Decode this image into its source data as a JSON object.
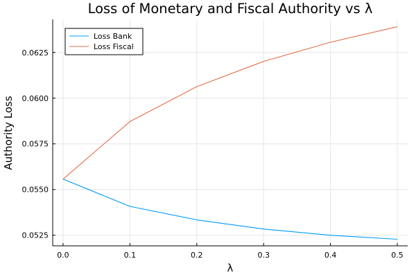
{
  "chart_data": {
    "type": "line",
    "title": "Loss of Monetary and Fiscal Authority vs λ",
    "xlabel": "λ",
    "ylabel": "Authority Loss",
    "x": [
      0.0,
      0.1,
      0.2,
      0.3,
      0.4,
      0.5
    ],
    "x_ticks": [
      0.0,
      0.1,
      0.2,
      0.3,
      0.4,
      0.5
    ],
    "x_tick_labels": [
      "0.0",
      "0.1",
      "0.2",
      "0.3",
      "0.4",
      "0.5"
    ],
    "y_ticks": [
      0.0525,
      0.055,
      0.0575,
      0.06,
      0.0625
    ],
    "y_tick_labels": [
      "0.0525",
      "0.0550",
      "0.0575",
      "0.0600",
      "0.0625"
    ],
    "xlim": [
      -0.0155,
      0.5155
    ],
    "ylim": [
      0.05192,
      0.06431
    ],
    "grid": true,
    "legend_position": "top-left",
    "series": [
      {
        "name": "Loss Bank",
        "color": "#009af9",
        "values": [
          0.05557,
          0.05408,
          0.05334,
          0.05284,
          0.0525,
          0.05228
        ]
      },
      {
        "name": "Loss Fiscal",
        "color": "#e26f46",
        "values": [
          0.05557,
          0.05872,
          0.06063,
          0.06201,
          0.06306,
          0.06391
        ]
      }
    ]
  }
}
